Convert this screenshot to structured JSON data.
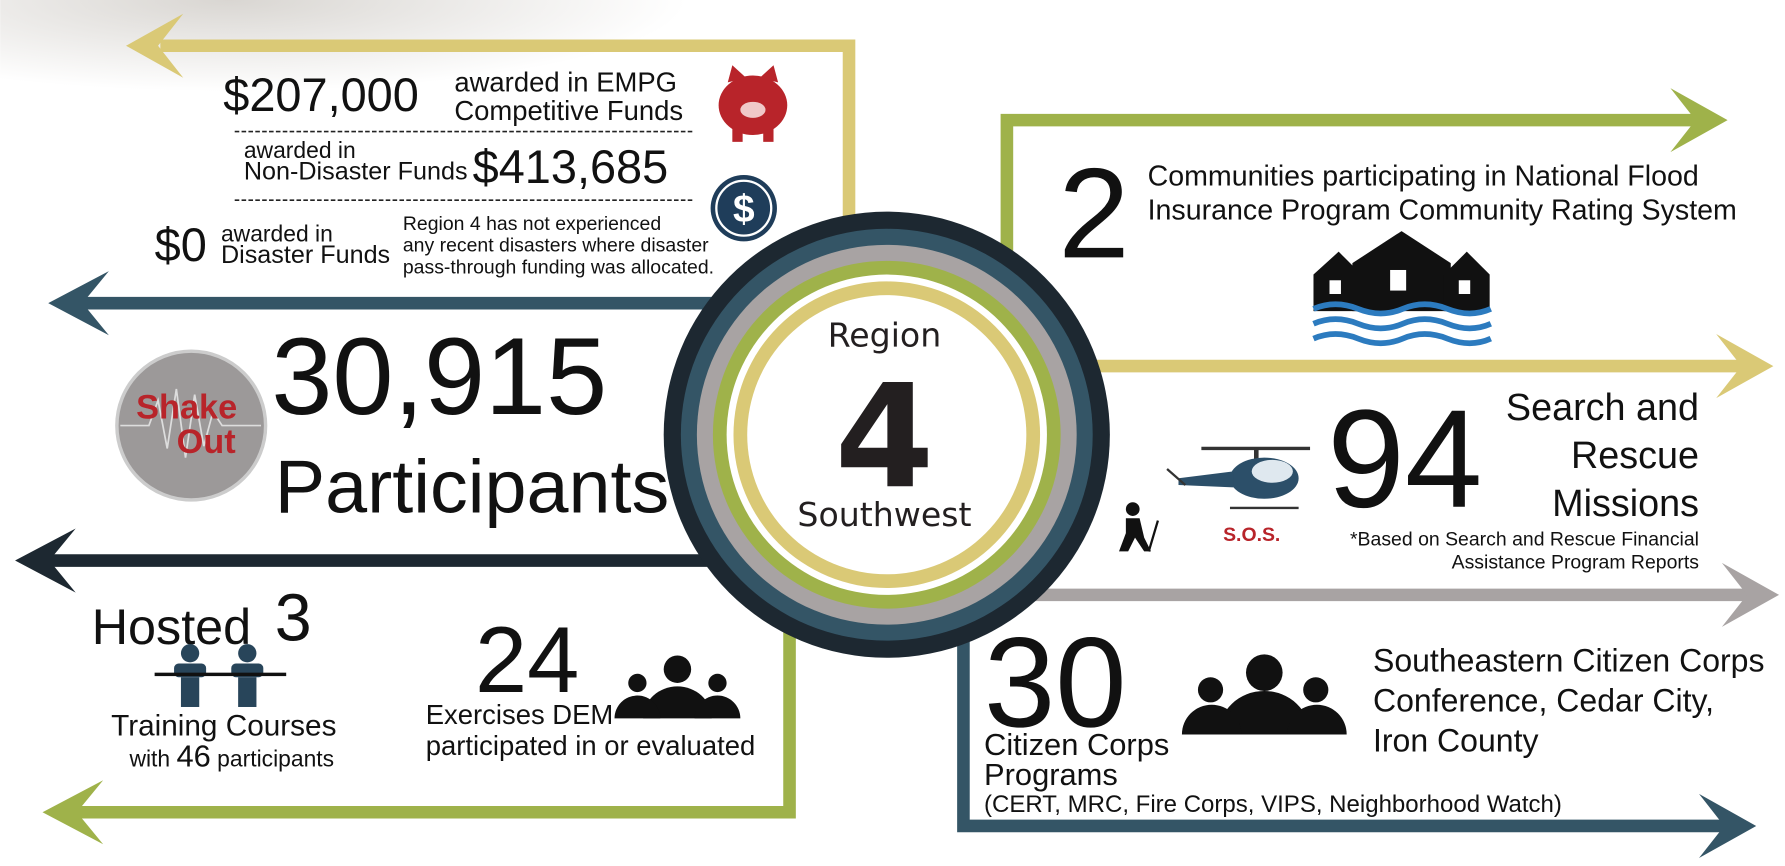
{
  "center": {
    "line1": "Region",
    "number": "4",
    "line2": "Southwest"
  },
  "funds": {
    "empg_amount": "$207,000",
    "empg_text": [
      "awarded in EMPG",
      "Competitive Funds"
    ],
    "nondisaster_text": [
      "awarded in",
      "Non-Disaster Funds"
    ],
    "nondisaster_amount": "$413,685",
    "dollar_icon": "$",
    "disaster_amount": "$0",
    "disaster_text": [
      "awarded in",
      "Disaster Funds"
    ],
    "disaster_note": [
      "Region 4 has not experienced",
      "any recent disasters where disaster",
      "pass-through funding was allocated."
    ]
  },
  "shakeout": {
    "logo": [
      "Shake",
      "Out"
    ],
    "number": "30,915",
    "label": "Participants"
  },
  "training": {
    "hosted": "Hosted",
    "number": "3",
    "label": "Training Courses",
    "with": "with",
    "participants_number": "46",
    "participants": "participants"
  },
  "exercises": {
    "number": "24",
    "label": [
      "Exercises DEM",
      "participated in or evaluated"
    ]
  },
  "flood": {
    "number": "2",
    "text": [
      "Communities participating in National Flood",
      "Insurance Program Community Rating System"
    ]
  },
  "search_rescue": {
    "number": "94",
    "label": [
      "Search and",
      "Rescue",
      "Missions"
    ],
    "sos": "S.O.S.",
    "note": [
      "*Based on Search and Rescue Financial",
      "Assistance Program Reports"
    ]
  },
  "citizen_corps": {
    "number": "30",
    "label": [
      "Citizen Corps",
      "Programs"
    ],
    "programs": "(CERT, MRC, Fire Corps, VIPS, Neighborhood Watch)",
    "conference": [
      "Southeastern Citizen Corps",
      "Conference, Cedar City,",
      "Iron County"
    ]
  }
}
